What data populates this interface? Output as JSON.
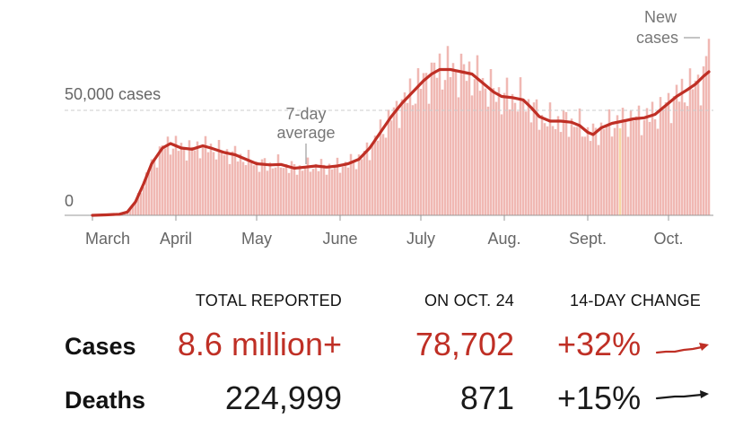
{
  "colors": {
    "accent": "#bf2f25",
    "bar": "#f0b8b3",
    "highlight_bar": "#f6d9a4",
    "text": "#121212",
    "muted": "#666666",
    "dark_arrow": "#1a1a1a"
  },
  "chart_data": {
    "type": "bar",
    "title": "",
    "series": [
      {
        "name": "New cases",
        "kind": "bar"
      },
      {
        "name": "7-day average",
        "kind": "line"
      }
    ],
    "x_labels": [
      "March",
      "April",
      "May",
      "June",
      "July",
      "Aug.",
      "Sept.",
      "Oct."
    ],
    "y_ticks": [
      {
        "value": 0,
        "label": "0"
      },
      {
        "value": 50000,
        "label": "50,000 cases"
      }
    ],
    "ylim": [
      0,
      80000
    ],
    "annotations": {
      "avg_line1": "7-day",
      "avg_line2": "average",
      "new_line1": "New",
      "new_line2": "cases"
    },
    "avg_points": [
      [
        0,
        0
      ],
      [
        5,
        200
      ],
      [
        10,
        500
      ],
      [
        13,
        1500
      ],
      [
        16,
        6000
      ],
      [
        19,
        14000
      ],
      [
        22,
        23000
      ],
      [
        26,
        30000
      ],
      [
        29,
        32000
      ],
      [
        33,
        30000
      ],
      [
        37,
        29500
      ],
      [
        41,
        31000
      ],
      [
        44,
        30000
      ],
      [
        49,
        28000
      ],
      [
        53,
        27000
      ],
      [
        57,
        25000
      ],
      [
        61,
        23000
      ],
      [
        66,
        22500
      ],
      [
        70,
        22700
      ],
      [
        75,
        21000
      ],
      [
        79,
        21500
      ],
      [
        83,
        22000
      ],
      [
        87,
        21500
      ],
      [
        91,
        22000
      ],
      [
        95,
        23000
      ],
      [
        99,
        25000
      ],
      [
        103,
        30000
      ],
      [
        107,
        37000
      ],
      [
        111,
        44000
      ],
      [
        115,
        50000
      ],
      [
        119,
        55000
      ],
      [
        123,
        60000
      ],
      [
        126,
        63000
      ],
      [
        129,
        65000
      ],
      [
        133,
        65000
      ],
      [
        137,
        64000
      ],
      [
        141,
        63000
      ],
      [
        145,
        59000
      ],
      [
        149,
        55000
      ],
      [
        152,
        53000
      ],
      [
        156,
        52500
      ],
      [
        160,
        51500
      ],
      [
        163,
        48000
      ],
      [
        166,
        44000
      ],
      [
        170,
        42000
      ],
      [
        174,
        42000
      ],
      [
        178,
        41500
      ],
      [
        181,
        40000
      ],
      [
        184,
        37000
      ],
      [
        186,
        36000
      ],
      [
        189,
        39000
      ],
      [
        193,
        41000
      ],
      [
        197,
        42000
      ],
      [
        201,
        43000
      ],
      [
        205,
        43500
      ],
      [
        209,
        45000
      ],
      [
        213,
        49000
      ],
      [
        217,
        53000
      ],
      [
        221,
        56000
      ],
      [
        224,
        58500
      ],
      [
        227,
        62000
      ],
      [
        229,
        64000
      ]
    ],
    "date_range_days": 230,
    "highlight_bar_day": 196
  },
  "table": {
    "headers": {
      "total": "TOTAL REPORTED",
      "day": "ON OCT. 24",
      "change": "14-DAY CHANGE"
    },
    "rows": [
      {
        "label": "Cases",
        "total": "8.6 million+",
        "day": "78,702",
        "change": "+32%"
      },
      {
        "label": "Deaths",
        "total": "224,999",
        "day": "871",
        "change": "+15%"
      }
    ]
  }
}
